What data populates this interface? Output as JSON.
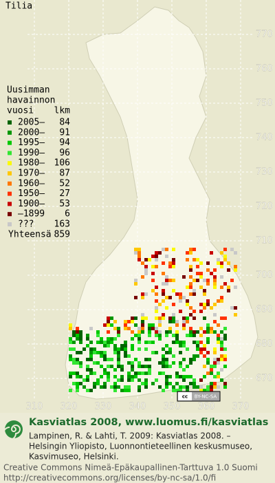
{
  "title": "Tilia",
  "legend": {
    "heading": [
      "Uusimman",
      "havainnon",
      "vuosi"
    ],
    "count_heading": "lkm",
    "entries": [
      {
        "label": "2005–",
        "count": 84,
        "color": "#006400"
      },
      {
        "label": "2000–",
        "count": 91,
        "color": "#009600"
      },
      {
        "label": "1995–",
        "count": 94,
        "color": "#00c800"
      },
      {
        "label": "1990–",
        "count": 96,
        "color": "#32e632"
      },
      {
        "label": "1980–",
        "count": 106,
        "color": "#fafa00"
      },
      {
        "label": "1970–",
        "count": 87,
        "color": "#ffc800"
      },
      {
        "label": "1960–",
        "count": 52,
        "color": "#ff7800"
      },
      {
        "label": "1950–",
        "count": 27,
        "color": "#ff3200"
      },
      {
        "label": "1900–",
        "count": 53,
        "color": "#c80000"
      },
      {
        "label": "–1899",
        "count": 6,
        "color": "#780000"
      },
      {
        "label": "???",
        "count": 163,
        "color": "#c8c8c8"
      }
    ],
    "total_label": "Yhteensä",
    "total": 859
  },
  "axes": {
    "x_ticks": [
      310,
      320,
      330,
      340,
      350,
      360,
      370
    ],
    "y_ticks": [
      670,
      680,
      690,
      700,
      710,
      720,
      730,
      740,
      750,
      760,
      770
    ]
  },
  "badge": {
    "cc": "cc",
    "license": "BY-NC-SA"
  },
  "footer": {
    "heading": "Kasviatlas 2008, www.luomus.fi/kasviatlas",
    "citation": [
      "Lampinen, R. & Lahti, T. 2009: Kasviatlas 2008. –",
      "Helsingin Yliopisto, Luonnontieteellinen keskusmuseo,",
      "Kasvimuseo, Helsinki."
    ],
    "license": [
      "Creative Commons Nimeä-Epäkaupallinen-Tarttuva 1.0 Suomi",
      "http://creativecommons.org/licenses/by-nc-sa/1.0/fi"
    ]
  }
}
